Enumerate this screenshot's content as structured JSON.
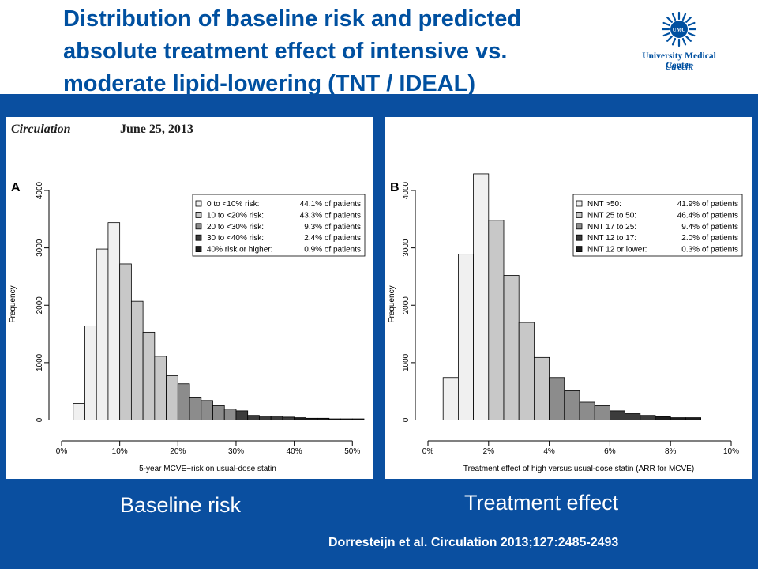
{
  "slide": {
    "title_lines": [
      "Distribution of baseline risk and predicted",
      "absolute treatment effect of intensive vs.",
      "moderate lipid-lowering (TNT / IDEAL)"
    ],
    "logo": {
      "emblem_text": "UMC",
      "name": "University Medical Center",
      "city": "Utrecht"
    },
    "caption_a": "Baseline risk",
    "caption_b": "Treatment effect",
    "citation": "Dorresteijn  et al. Circulation  2013;127:2485-2493",
    "colors": {
      "brand_blue": "#0050a0",
      "band_blue": "#0a4fa0"
    }
  },
  "chart_data": [
    {
      "type": "bar",
      "panel_label": "A",
      "journal": "Circulation",
      "date": "June 25, 2013",
      "xlabel": "5-year MCVE−risk on usual-dose statin",
      "ylabel": "Frequency",
      "xlim": [
        0,
        52
      ],
      "ylim": [
        0,
        4000
      ],
      "x_ticks": [
        0,
        10,
        20,
        30,
        40,
        50
      ],
      "x_tick_labels": [
        "0%",
        "10%",
        "20%",
        "30%",
        "40%",
        "50%"
      ],
      "y_ticks": [
        0,
        1000,
        2000,
        3000,
        4000
      ],
      "y_tick_labels": [
        "0",
        "1000",
        "2000",
        "3000",
        "4000"
      ],
      "bin_width": 2,
      "bin_starts": [
        2,
        4,
        6,
        8,
        10,
        12,
        14,
        16,
        18,
        20,
        22,
        24,
        26,
        28,
        30,
        32,
        34,
        36,
        38,
        40,
        42,
        44,
        46,
        48,
        50
      ],
      "values": [
        290,
        1640,
        2980,
        3440,
        2720,
        2070,
        1530,
        1110,
        770,
        630,
        400,
        340,
        250,
        190,
        160,
        80,
        70,
        70,
        50,
        40,
        30,
        30,
        20,
        20,
        20
      ],
      "shade_groups": [
        0,
        0,
        0,
        0,
        1,
        1,
        1,
        1,
        1,
        2,
        2,
        2,
        2,
        2,
        3,
        3,
        3,
        3,
        3,
        4,
        4,
        4,
        4,
        4,
        4
      ],
      "legend": {
        "position": "top-right",
        "entries": [
          {
            "label": "0   to <10% risk:",
            "value": "44.1% of patients"
          },
          {
            "label": "10 to <20% risk:",
            "value": "43.3% of patients"
          },
          {
            "label": "20 to <30% risk:",
            "value": "9.3% of patients"
          },
          {
            "label": "30 to <40% risk:",
            "value": "2.4% of patients"
          },
          {
            "label": "40% risk or higher:",
            "value": "0.9% of patients"
          }
        ]
      },
      "shades": [
        "#f0f0f0",
        "#c8c8c8",
        "#8c8c8c",
        "#3c3c3c",
        "#1e1e1e"
      ]
    },
    {
      "type": "bar",
      "panel_label": "B",
      "xlabel": "Treatment effect of high versus usual-dose statin (ARR for MCVE)",
      "ylabel": "Frequency",
      "xlim": [
        0,
        10
      ],
      "ylim": [
        0,
        4000
      ],
      "x_ticks": [
        0,
        2,
        4,
        6,
        8,
        10
      ],
      "x_tick_labels": [
        "0%",
        "2%",
        "4%",
        "6%",
        "8%",
        "10%"
      ],
      "y_ticks": [
        0,
        1000,
        2000,
        3000,
        4000
      ],
      "y_tick_labels": [
        "0",
        "1000",
        "2000",
        "3000",
        "4000"
      ],
      "bin_width": 0.5,
      "bin_starts": [
        0.5,
        1.0,
        1.5,
        2.0,
        2.5,
        3.0,
        3.5,
        4.0,
        4.5,
        5.0,
        5.5,
        6.0,
        6.5,
        7.0,
        7.5,
        8.0,
        8.5
      ],
      "values": [
        740,
        2890,
        4290,
        3480,
        2520,
        1700,
        1090,
        740,
        510,
        310,
        250,
        160,
        110,
        80,
        60,
        40,
        40
      ],
      "shade_groups": [
        0,
        0,
        0,
        1,
        1,
        1,
        1,
        2,
        2,
        2,
        2,
        3,
        3,
        3,
        4,
        4,
        4
      ],
      "legend": {
        "position": "top-right",
        "entries": [
          {
            "label": "NNT >50:",
            "value": "41.9% of patients"
          },
          {
            "label": "NNT 25 to 50:",
            "value": "46.4% of patients"
          },
          {
            "label": "NNT 17 to 25:",
            "value": "9.4% of patients"
          },
          {
            "label": "NNT 12 to 17:",
            "value": "2.0% of patients"
          },
          {
            "label": "NNT 12 or lower:",
            "value": "0.3% of patients"
          }
        ]
      },
      "shades": [
        "#f0f0f0",
        "#c8c8c8",
        "#8c8c8c",
        "#3c3c3c",
        "#1e1e1e"
      ]
    }
  ]
}
